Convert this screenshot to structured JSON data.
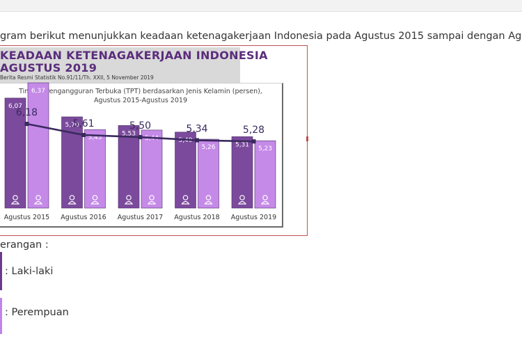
{
  "intro_text": "gram berikut menunjukkan keadaan ketenagakerjaan Indonesia pada Agustus 2015 sampai dengan Agus",
  "infographic": {
    "heading_line1": "KEADAAN KETENAGAKERJAAN INDONESIA",
    "heading_line2": "AGUSTUS 2019",
    "source": "Berita Resmi Statistik No.91/11/Th. XXII, 5 November 2019"
  },
  "legend": {
    "title": "erangan :",
    "male_label": ": Laki-laki",
    "female_label": ": Perempuan"
  },
  "chart_data": {
    "type": "bar",
    "title": "Tingkat Pengangguran Terbuka (TPT) berdasarkan Jenis Kelamin (persen),",
    "subtitle": "Agustus 2015-Agustus 2019",
    "categories": [
      "Agustus 2015",
      "Agustus 2016",
      "Agustus 2017",
      "Agustus 2018",
      "Agustus 2019"
    ],
    "series": [
      {
        "key": "male",
        "values": [
          6.07,
          5.7,
          5.53,
          5.4,
          5.31
        ],
        "labels": [
          "6,07",
          "5,70",
          "5,53",
          "5,40",
          "5,31"
        ],
        "color": "#7b4a9c"
      },
      {
        "key": "female",
        "values": [
          6.37,
          5.45,
          5.44,
          5.26,
          5.23
        ],
        "labels": [
          "6,37",
          "5,45",
          "5,44",
          "5,26",
          "5,23"
        ],
        "color": "#c58ae8"
      }
    ],
    "total": {
      "type": "line",
      "values": [
        6.18,
        5.61,
        5.5,
        5.34,
        5.28
      ],
      "labels": [
        "6,18",
        "5,61",
        "5,50",
        "5,34",
        "5,28"
      ],
      "color": "#3a2a5e"
    },
    "legend": "bottom-left",
    "grid": false
  }
}
